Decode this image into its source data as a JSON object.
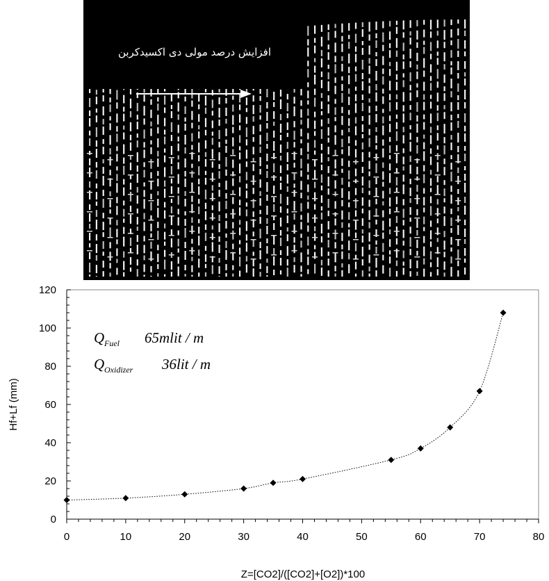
{
  "photo": {
    "caption": "افزایش درصد مولی دی اکسیدکربن",
    "background_color": "#000000",
    "flame_color": "#f2f2f2",
    "flame_count": 56
  },
  "annotations": {
    "fuel_symbol": "Q",
    "fuel_subscript": "Fuel",
    "fuel_value": "65mlit / m",
    "oxidizer_symbol": "Q",
    "oxidizer_subscript": "Oxidizer",
    "oxidizer_value": "36lit / m"
  },
  "chart_data": {
    "type": "scatter",
    "title": "",
    "xlabel": "Z=[CO2]/([CO2]+[O2])*100",
    "ylabel": "Hf+Lf (mm)",
    "xlim": [
      0,
      80
    ],
    "ylim": [
      0,
      120
    ],
    "x_ticks": [
      0,
      10,
      20,
      30,
      40,
      50,
      60,
      70,
      80
    ],
    "y_ticks": [
      0,
      20,
      40,
      60,
      80,
      100,
      120
    ],
    "grid": false,
    "trendline": "dotted",
    "marker": "diamond",
    "series": [
      {
        "x": [
          0,
          10,
          20,
          30,
          35,
          40,
          55,
          60,
          65,
          70,
          74
        ],
        "y": [
          10,
          11,
          13,
          16,
          19,
          21,
          31,
          37,
          48,
          67,
          108
        ]
      }
    ]
  }
}
